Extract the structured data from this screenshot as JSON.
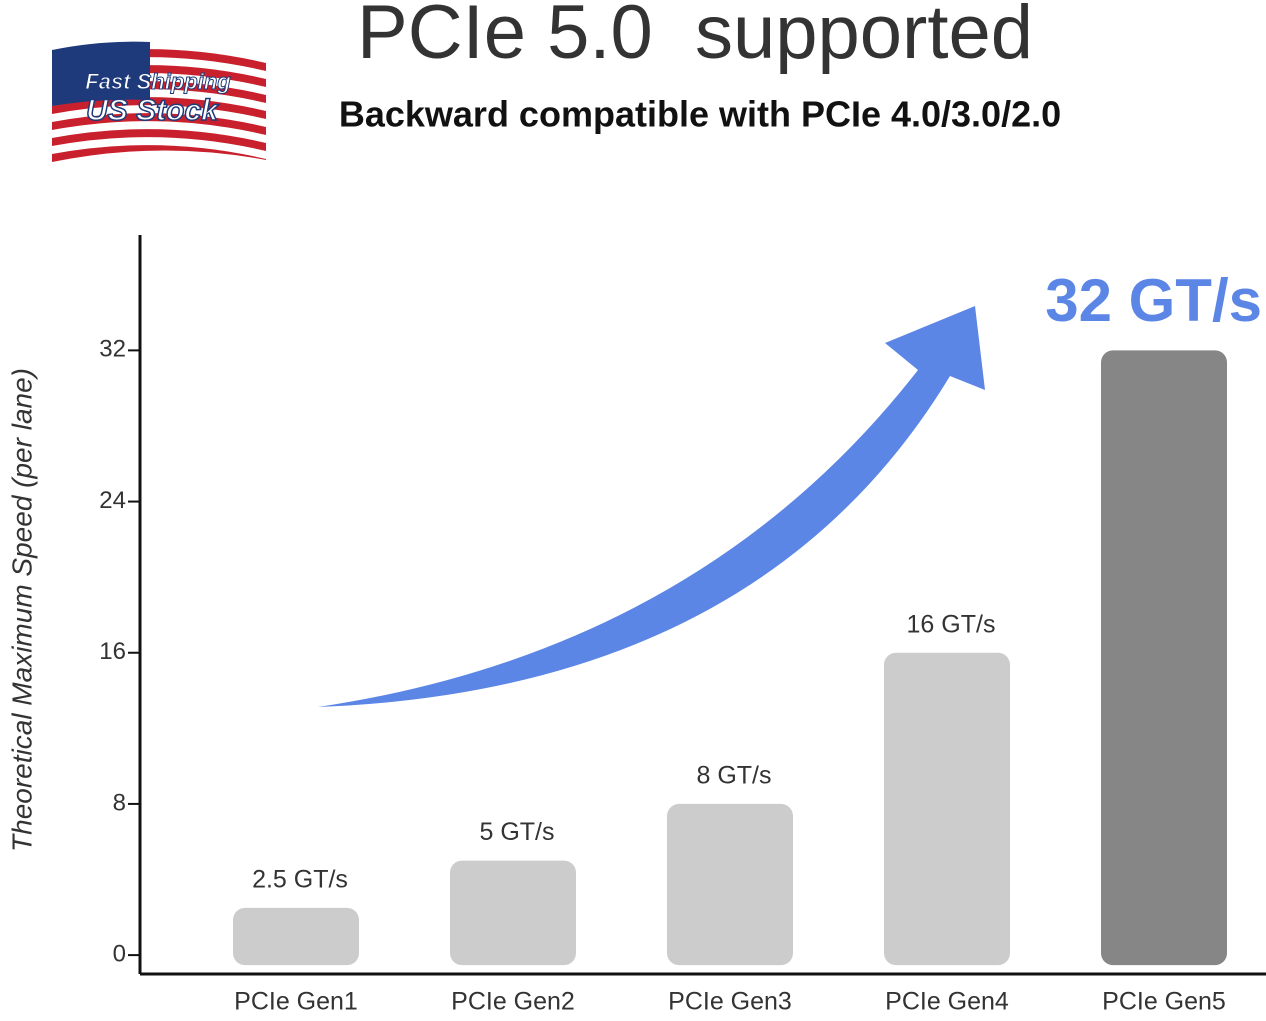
{
  "badge": {
    "line1": "Fast Shipping",
    "line2": "US Stock"
  },
  "chart_data": {
    "type": "bar",
    "title": "PCIe 5.0  supported",
    "subtitle": "Backward compatible with PCIe 4.0/3.0/2.0",
    "y_label": "Theoretical Maximum Speed (per lane)",
    "categories": [
      "PCIe Gen1",
      "PCIe Gen2",
      "PCIe Gen3",
      "PCIe Gen4",
      "PCIe Gen5"
    ],
    "values": [
      2.5,
      5,
      8,
      16,
      32
    ],
    "value_labels": [
      "2.5 GT/s",
      "5 GT/s",
      "8 GT/s",
      "16 GT/s",
      "32 GT/s"
    ],
    "colors": [
      "#cccccc",
      "#cccccc",
      "#cccccc",
      "#cccccc",
      "#868686"
    ],
    "highlight_color": "#5b86e5",
    "ylim": [
      -1,
      38
    ],
    "yticks": [
      0,
      8,
      16,
      24,
      32
    ],
    "grid": false
  }
}
